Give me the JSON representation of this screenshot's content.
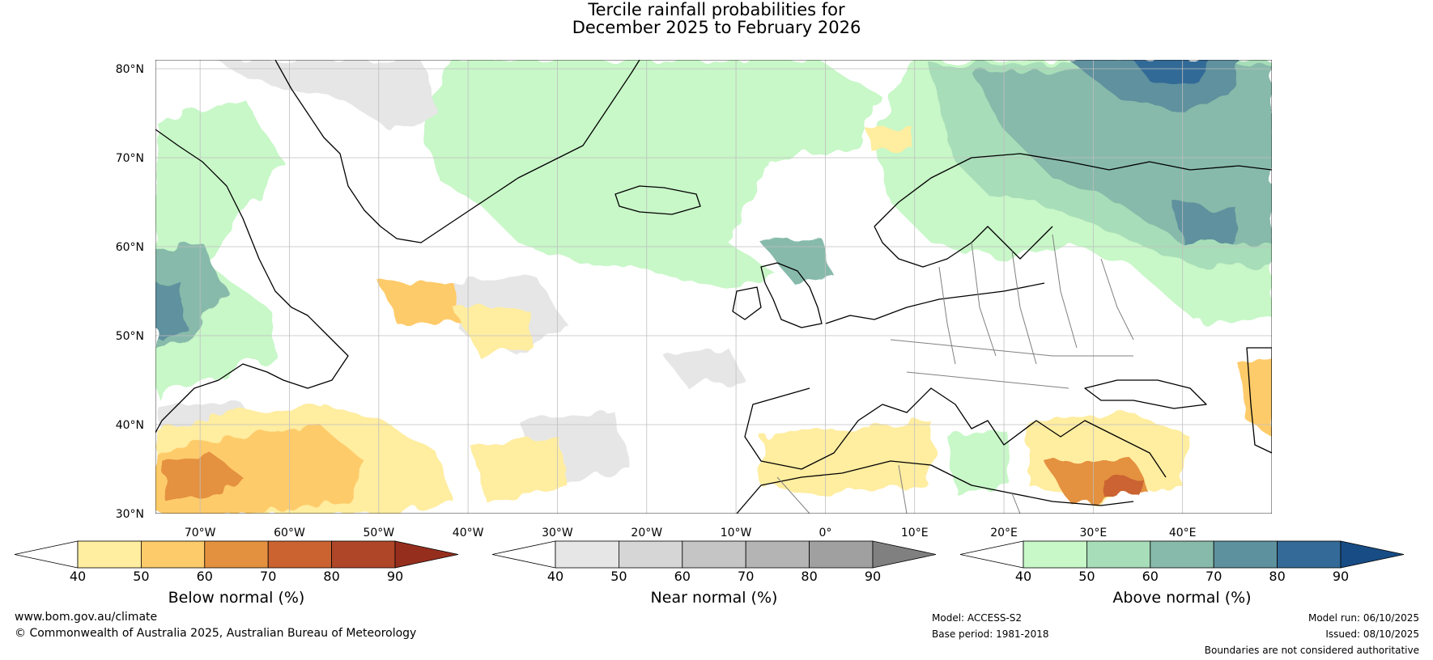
{
  "title": {
    "line1": "Tercile rainfall probabilities for",
    "line2": "December 2025 to February 2026"
  },
  "map": {
    "lat_labels": [
      "80°N",
      "70°N",
      "60°N",
      "50°N",
      "40°N",
      "30°N"
    ],
    "lon_labels": [
      "70°W",
      "60°W",
      "50°W",
      "40°W",
      "30°W",
      "20°W",
      "10°W",
      "0°",
      "10°E",
      "20°E",
      "30°E",
      "40°E"
    ],
    "lon_values": [
      -70,
      -60,
      -50,
      -40,
      -30,
      -20,
      -10,
      0,
      10,
      20,
      30,
      40
    ],
    "lat_values": [
      80,
      70,
      60,
      50,
      40,
      30
    ],
    "extent": {
      "lon_min": -75,
      "lon_max": 50,
      "lat_min": 30,
      "lat_max": 81
    },
    "colors": {
      "below": [
        "#FFEDA0",
        "#FECB6A",
        "#E4913F",
        "#CB6330",
        "#B04628",
        "#962E1E"
      ],
      "near": [
        "#E6E6E6",
        "#D6D6D6",
        "#C5C5C5",
        "#B4B4B4",
        "#A0A0A0",
        "#808080"
      ],
      "above": [
        "#C8F7C8",
        "#A7DDB8",
        "#87BAAA",
        "#5E919E",
        "#336A97",
        "#184C85"
      ]
    }
  },
  "colorbars": [
    {
      "id": "below",
      "label": "Below normal (%)",
      "ticks": [
        "40",
        "50",
        "60",
        "70",
        "80",
        "90"
      ],
      "colors": [
        "#FFEDA0",
        "#FECB6A",
        "#E4913F",
        "#CB6330",
        "#B04628"
      ],
      "extend_color": "#962E1E"
    },
    {
      "id": "near",
      "label": "Near normal (%)",
      "ticks": [
        "40",
        "50",
        "60",
        "70",
        "80",
        "90"
      ],
      "colors": [
        "#E6E6E6",
        "#D6D6D6",
        "#C5C5C5",
        "#B4B4B4",
        "#A0A0A0"
      ],
      "extend_color": "#808080"
    },
    {
      "id": "above",
      "label": "Above normal (%)",
      "ticks": [
        "40",
        "50",
        "60",
        "70",
        "80",
        "90"
      ],
      "colors": [
        "#C8F7C8",
        "#A7DDB8",
        "#87BAAA",
        "#5E919E",
        "#336A97"
      ],
      "extend_color": "#184C85"
    }
  ],
  "footer": {
    "website": "www.bom.gov.au/climate",
    "copyright": "© Commonwealth of Australia 2025, Australian Bureau of Meteorology",
    "model": "Model: ACCESS-S2",
    "base_period": "Base period: 1981-2018",
    "model_run": "Model run: 06/10/2025",
    "issued": "Issued: 08/10/2025",
    "disclaimer": "Boundaries are not considered authoritative"
  }
}
